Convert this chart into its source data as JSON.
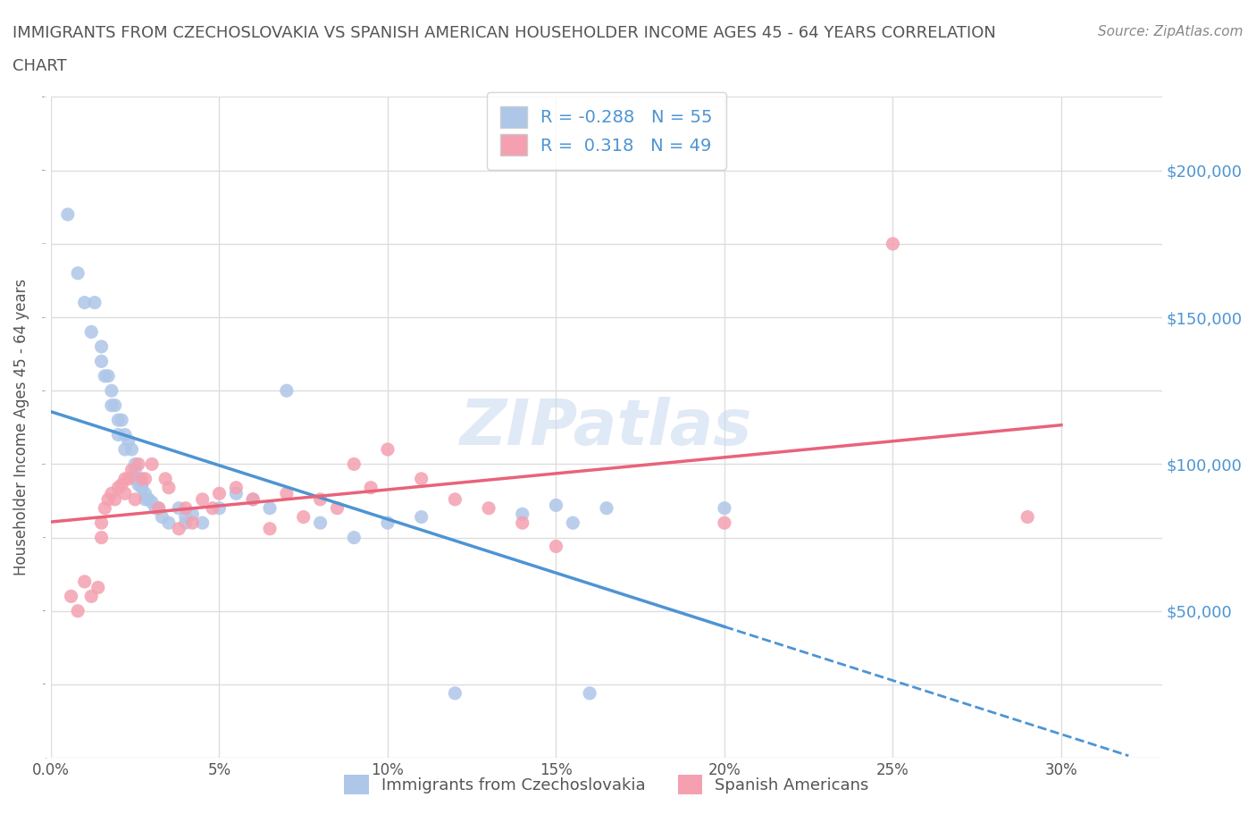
{
  "title_line1": "IMMIGRANTS FROM CZECHOSLOVAKIA VS SPANISH AMERICAN HOUSEHOLDER INCOME AGES 45 - 64 YEARS CORRELATION",
  "title_line2": "CHART",
  "source": "Source: ZipAtlas.com",
  "ylabel": "Householder Income Ages 45 - 64 years",
  "watermark": "ZIPatlas",
  "blue_R": -0.288,
  "blue_N": 55,
  "pink_R": 0.318,
  "pink_N": 49,
  "blue_label": "Immigrants from Czechoslovakia",
  "pink_label": "Spanish Americans",
  "blue_color": "#aec6e8",
  "pink_color": "#f4a0b0",
  "blue_line_color": "#4d94d4",
  "pink_line_color": "#e8637a",
  "xlim": [
    0.0,
    0.33
  ],
  "ylim": [
    0,
    225000
  ],
  "yticks": [
    50000,
    100000,
    150000,
    200000
  ],
  "xticks": [
    0.0,
    0.05,
    0.1,
    0.15,
    0.2,
    0.25,
    0.3
  ],
  "blue_scatter_x": [
    0.005,
    0.008,
    0.01,
    0.012,
    0.013,
    0.015,
    0.015,
    0.016,
    0.017,
    0.018,
    0.018,
    0.019,
    0.02,
    0.02,
    0.021,
    0.022,
    0.022,
    0.023,
    0.024,
    0.025,
    0.025,
    0.025,
    0.026,
    0.026,
    0.027,
    0.027,
    0.028,
    0.028,
    0.029,
    0.03,
    0.031,
    0.032,
    0.033,
    0.035,
    0.038,
    0.04,
    0.04,
    0.042,
    0.045,
    0.05,
    0.055,
    0.06,
    0.065,
    0.07,
    0.08,
    0.09,
    0.1,
    0.11,
    0.12,
    0.14,
    0.15,
    0.155,
    0.16,
    0.165,
    0.2
  ],
  "blue_scatter_y": [
    185000,
    165000,
    155000,
    145000,
    155000,
    140000,
    135000,
    130000,
    130000,
    125000,
    120000,
    120000,
    115000,
    110000,
    115000,
    110000,
    105000,
    108000,
    105000,
    100000,
    98000,
    95000,
    95000,
    93000,
    93000,
    92000,
    90000,
    88000,
    88000,
    87000,
    85000,
    85000,
    82000,
    80000,
    85000,
    82000,
    80000,
    83000,
    80000,
    85000,
    90000,
    88000,
    85000,
    125000,
    80000,
    75000,
    80000,
    82000,
    22000,
    83000,
    86000,
    80000,
    22000,
    85000,
    85000
  ],
  "pink_scatter_x": [
    0.006,
    0.008,
    0.01,
    0.012,
    0.014,
    0.015,
    0.015,
    0.016,
    0.017,
    0.018,
    0.019,
    0.02,
    0.021,
    0.022,
    0.022,
    0.023,
    0.024,
    0.025,
    0.026,
    0.027,
    0.028,
    0.03,
    0.032,
    0.034,
    0.035,
    0.038,
    0.04,
    0.042,
    0.045,
    0.048,
    0.05,
    0.055,
    0.06,
    0.065,
    0.07,
    0.075,
    0.08,
    0.085,
    0.09,
    0.095,
    0.1,
    0.11,
    0.12,
    0.13,
    0.14,
    0.15,
    0.2,
    0.25,
    0.29
  ],
  "pink_scatter_y": [
    55000,
    50000,
    60000,
    55000,
    58000,
    80000,
    75000,
    85000,
    88000,
    90000,
    88000,
    92000,
    93000,
    95000,
    90000,
    95000,
    98000,
    88000,
    100000,
    95000,
    95000,
    100000,
    85000,
    95000,
    92000,
    78000,
    85000,
    80000,
    88000,
    85000,
    90000,
    92000,
    88000,
    78000,
    90000,
    82000,
    88000,
    85000,
    100000,
    92000,
    105000,
    95000,
    88000,
    85000,
    80000,
    72000,
    80000,
    175000,
    82000
  ],
  "grid_color": "#dddddd",
  "background_color": "#ffffff",
  "title_color": "#555555",
  "axis_label_color": "#555555"
}
